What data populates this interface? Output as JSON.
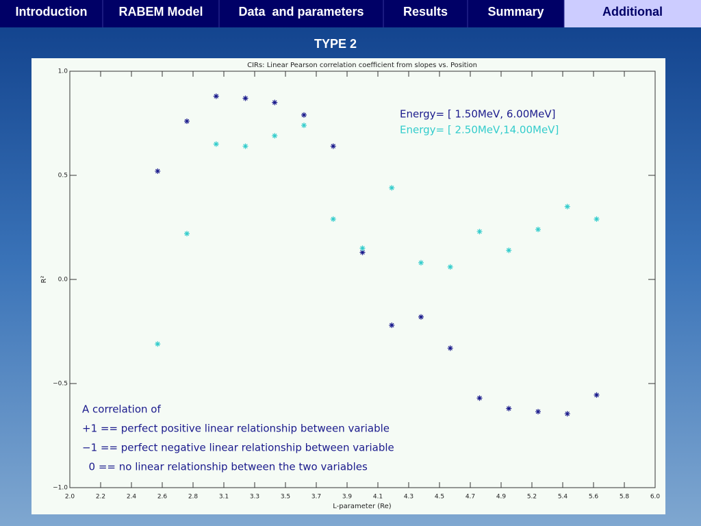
{
  "nav": {
    "items": [
      "Introduction",
      "RABEM Model",
      "Data  and parameters",
      "Results",
      "Summary",
      "Additional"
    ],
    "active": 5
  },
  "heading": "TYPE 2",
  "chart_data": {
    "type": "scatter",
    "title": "CIRs: Linear Pearson correlation coefficient from slopes vs. Position",
    "xlabel": "L-parameter (Re)",
    "ylabel": "R²",
    "xlim": [
      2.0,
      6.0
    ],
    "ylim": [
      -1.0,
      1.0
    ],
    "xticks": [
      {
        "value": 2.0,
        "label": "2.0"
      },
      {
        "value": 2.2105,
        "label": "2.2"
      },
      {
        "value": 2.4211,
        "label": "2.4"
      },
      {
        "value": 2.6316,
        "label": "2.6"
      },
      {
        "value": 2.8421,
        "label": "2.8"
      },
      {
        "value": 3.0526,
        "label": "3.1"
      },
      {
        "value": 3.2632,
        "label": "3.3"
      },
      {
        "value": 3.4737,
        "label": "3.5"
      },
      {
        "value": 3.6842,
        "label": "3.7"
      },
      {
        "value": 3.8947,
        "label": "3.9"
      },
      {
        "value": 4.1053,
        "label": "4.1"
      },
      {
        "value": 4.3158,
        "label": "4.3"
      },
      {
        "value": 4.5263,
        "label": "4.5"
      },
      {
        "value": 4.7368,
        "label": "4.7"
      },
      {
        "value": 4.9474,
        "label": "4.9"
      },
      {
        "value": 5.1579,
        "label": "5.2"
      },
      {
        "value": 5.3684,
        "label": "5.4"
      },
      {
        "value": 5.5789,
        "label": "5.6"
      },
      {
        "value": 5.7895,
        "label": "5.8"
      },
      {
        "value": 6.0,
        "label": "6.0"
      }
    ],
    "yticks": [
      {
        "value": 1.0,
        "label": "1.0"
      },
      0.5,
      {
        "value": 0.0,
        "label": "0.0"
      },
      {
        "value": -0.5,
        "label": "−0.5"
      },
      {
        "value": -1.0,
        "label": "−1.0"
      }
    ],
    "x": [
      2.6,
      2.8,
      3.0,
      3.2,
      3.4,
      3.6,
      3.8,
      4.0,
      4.2,
      4.4,
      4.6,
      4.8,
      5.0,
      5.2,
      5.4,
      5.6
    ],
    "series": [
      {
        "name": "Energy= [ 1.50MeV, 6.00MeV]",
        "color": "#1a1a8c",
        "values": [
          0.52,
          0.76,
          0.88,
          0.87,
          0.85,
          0.79,
          0.64,
          0.13,
          -0.22,
          -0.18,
          -0.33,
          -0.57,
          -0.62,
          -0.635,
          -0.645,
          -0.555
        ]
      },
      {
        "name": "Energy= [ 2.50MeV,14.00MeV]",
        "color": "#33cccc",
        "values": [
          -0.31,
          0.22,
          0.65,
          0.64,
          0.69,
          0.74,
          0.29,
          0.15,
          0.44,
          0.08,
          0.06,
          0.23,
          0.14,
          0.24,
          0.35,
          0.29
        ]
      }
    ],
    "annotations": [
      "A correlation of",
      "+1 == perfect positive linear relationship between variable",
      "−1 == perfect negative linear relationship between variable",
      "  0 == no linear relationship between the two variables"
    ]
  }
}
